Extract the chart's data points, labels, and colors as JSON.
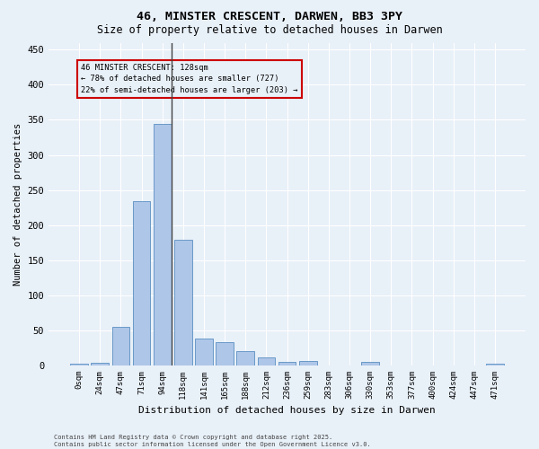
{
  "title1": "46, MINSTER CRESCENT, DARWEN, BB3 3PY",
  "title2": "Size of property relative to detached houses in Darwen",
  "xlabel": "Distribution of detached houses by size in Darwen",
  "ylabel": "Number of detached properties",
  "footnote1": "Contains HM Land Registry data © Crown copyright and database right 2025.",
  "footnote2": "Contains public sector information licensed under the Open Government Licence v3.0.",
  "bar_labels": [
    "0sqm",
    "24sqm",
    "47sqm",
    "71sqm",
    "94sqm",
    "118sqm",
    "141sqm",
    "165sqm",
    "188sqm",
    "212sqm",
    "236sqm",
    "259sqm",
    "283sqm",
    "306sqm",
    "330sqm",
    "353sqm",
    "377sqm",
    "400sqm",
    "424sqm",
    "447sqm",
    "471sqm"
  ],
  "bar_values": [
    3,
    4,
    55,
    234,
    344,
    179,
    38,
    33,
    20,
    12,
    5,
    6,
    0,
    0,
    5,
    0,
    0,
    0,
    0,
    0,
    3
  ],
  "bar_color": "#aec6e8",
  "bar_edge_color": "#5a8fc2",
  "bg_color": "#e8f0f8",
  "grid_color": "#ffffff",
  "ylim": [
    0,
    460
  ],
  "yticks": [
    0,
    50,
    100,
    150,
    200,
    250,
    300,
    350,
    400,
    450
  ],
  "annotation_line1": "46 MINSTER CRESCENT: 128sqm",
  "annotation_line2": "← 78% of detached houses are smaller (727)",
  "annotation_line3": "22% of semi-detached houses are larger (203) →",
  "vline_bar_index": 4,
  "box_color": "#cc0000",
  "fig_width": 6.0,
  "fig_height": 5.0
}
